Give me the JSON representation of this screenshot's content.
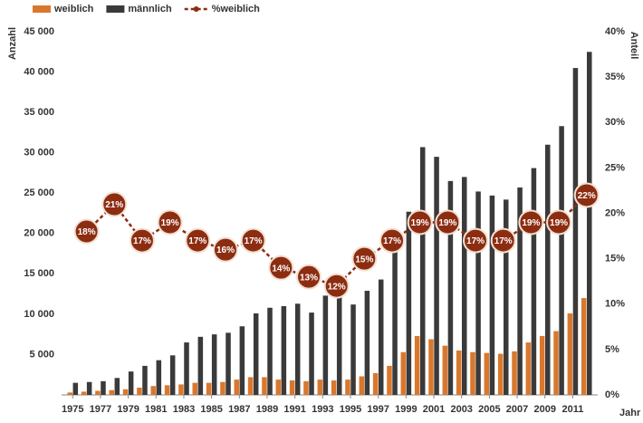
{
  "chart_data": {
    "type": "bar",
    "legend_position": "top-left",
    "xlabel": "Jahr",
    "ylabel": "Anzahl",
    "y2label": "Anteil",
    "x": [
      1975,
      1976,
      1977,
      1978,
      1979,
      1980,
      1981,
      1982,
      1983,
      1984,
      1985,
      1986,
      1987,
      1988,
      1989,
      1990,
      1991,
      1992,
      1993,
      1994,
      1995,
      1996,
      1997,
      1998,
      1999,
      2000,
      2001,
      2002,
      2003,
      2004,
      2005,
      2006,
      2007,
      2008,
      2009,
      2010,
      2011,
      2012
    ],
    "xlim": [
      1974.2,
      2012.8
    ],
    "xticks": [
      1975,
      1977,
      1979,
      1981,
      1983,
      1985,
      1987,
      1989,
      1991,
      1993,
      1995,
      1997,
      1999,
      2001,
      2003,
      2005,
      2007,
      2009,
      2011
    ],
    "ylim": [
      0,
      45000
    ],
    "yticks": [
      {
        "value": 5000,
        "label": "5 000"
      },
      {
        "value": 10000,
        "label": "10 000"
      },
      {
        "value": 15000,
        "label": "15 000"
      },
      {
        "value": 20000,
        "label": "20 000"
      },
      {
        "value": 25000,
        "label": "25 000"
      },
      {
        "value": 30000,
        "label": "30 000"
      },
      {
        "value": 35000,
        "label": "35 000"
      },
      {
        "value": 40000,
        "label": "40 000"
      },
      {
        "value": 45000,
        "label": "45 000"
      }
    ],
    "y2lim": [
      0,
      40
    ],
    "y2ticks": [
      {
        "value": 0,
        "label": "0%"
      },
      {
        "value": 5,
        "label": "5%"
      },
      {
        "value": 10,
        "label": "10%"
      },
      {
        "value": 15,
        "label": "15%"
      },
      {
        "value": 20,
        "label": "20%"
      },
      {
        "value": 25,
        "label": "25%"
      },
      {
        "value": 30,
        "label": "30%"
      },
      {
        "value": 35,
        "label": "35%"
      },
      {
        "value": 40,
        "label": "40%"
      }
    ],
    "series": [
      {
        "name": "weiblich",
        "color": "#d9782d",
        "type": "bar",
        "values": [
          300,
          400,
          500,
          600,
          700,
          900,
          1100,
          1200,
          1300,
          1500,
          1500,
          1600,
          1900,
          2200,
          2200,
          1900,
          1800,
          1700,
          1900,
          1800,
          1900,
          2300,
          2700,
          3600,
          5300,
          7300,
          6900,
          6100,
          5500,
          5300,
          5200,
          5100,
          5400,
          6500,
          7300,
          7900,
          10100,
          12000
        ]
      },
      {
        "name": "männlich",
        "color": "#3a3a3a",
        "type": "bar",
        "values": [
          1500,
          1600,
          1700,
          2100,
          2900,
          3600,
          4300,
          4900,
          6500,
          7200,
          7500,
          7700,
          8500,
          10100,
          10800,
          11000,
          11300,
          10200,
          12300,
          12400,
          11200,
          12900,
          14300,
          18000,
          22700,
          30700,
          29500,
          26500,
          27000,
          25200,
          24700,
          24200,
          25700,
          28100,
          31000,
          33300,
          40500,
          42500
        ]
      },
      {
        "name": "%weiblich",
        "color": "#8c2d12",
        "type": "line",
        "axis": "y2",
        "x": [
          1976,
          1978,
          1980,
          1982,
          1984,
          1986,
          1988,
          1990,
          1992,
          1994,
          1996,
          1998,
          2000,
          2002,
          2004,
          2006,
          2008,
          2010,
          2012
        ],
        "values": [
          18,
          21,
          17,
          19,
          17,
          16,
          17,
          14,
          13,
          12,
          15,
          17,
          19,
          19,
          17,
          17,
          19,
          19,
          22
        ],
        "value_labels": [
          "18%",
          "21%",
          "17%",
          "19%",
          "17%",
          "16%",
          "17%",
          "14%",
          "13%",
          "12%",
          "15%",
          "17%",
          "19%",
          "19%",
          "17%",
          "17%",
          "19%",
          "19%",
          "22%"
        ]
      }
    ]
  }
}
